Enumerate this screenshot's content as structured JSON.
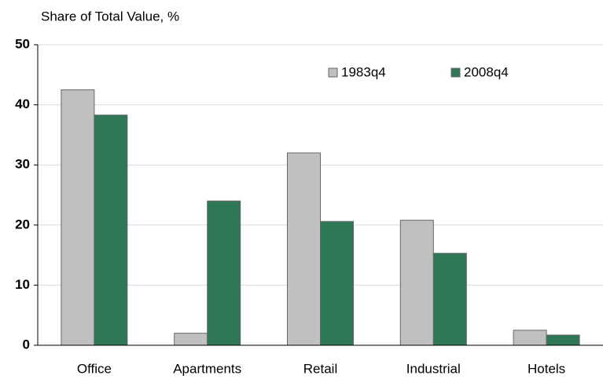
{
  "chart_data": {
    "type": "bar",
    "title": "Share of Total Value, %",
    "categories": [
      "Office",
      "Apartments",
      "Retail",
      "Industrial",
      "Hotels"
    ],
    "series": [
      {
        "name": "1983q4",
        "color": "#c0c0c0",
        "values": [
          42.5,
          2.0,
          32.0,
          20.8,
          2.5
        ]
      },
      {
        "name": "2008q4",
        "color": "#2e7857",
        "values": [
          38.3,
          24.0,
          20.6,
          15.3,
          1.7
        ]
      }
    ],
    "ylim": [
      0,
      50
    ],
    "yticks": [
      0,
      10,
      20,
      30,
      40,
      50
    ],
    "grid": true
  }
}
